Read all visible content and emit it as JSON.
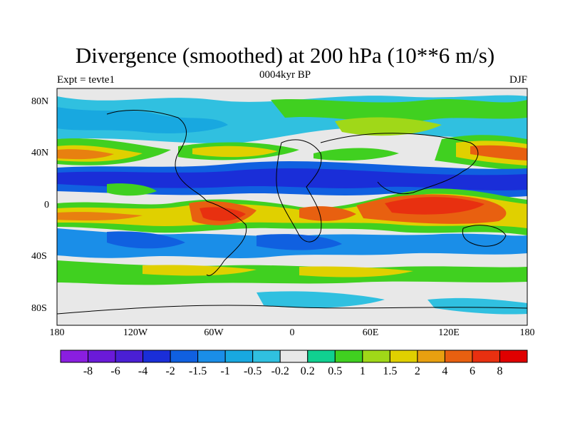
{
  "title": "Divergence (smoothed) at 200 hPa (10**6 m/s)",
  "subtitle_left": "Expt = tevte1",
  "subtitle_center": "0004kyr BP",
  "subtitle_right": "DJF",
  "lat_labels": [
    "80N",
    "40N",
    "0",
    "40S",
    "80S"
  ],
  "lon_labels": [
    "180",
    "120W",
    "60W",
    "0",
    "60E",
    "120E",
    "180"
  ],
  "colorbar": {
    "labels": [
      "-8",
      "-6",
      "-4",
      "-2",
      "-1.5",
      "-1",
      "-0.5",
      "-0.2",
      "0.2",
      "0.5",
      "1",
      "1.5",
      "2",
      "4",
      "6",
      "8"
    ],
    "colors": [
      "#8a1ee0",
      "#6a1ad8",
      "#4a1fd4",
      "#1a2ed8",
      "#1060e0",
      "#1a8ee8",
      "#18a8e0",
      "#30c0e0",
      "#e8e8e8",
      "#10d090",
      "#40d020",
      "#a0d818",
      "#e0d000",
      "#e8a010",
      "#e86010",
      "#e83010",
      "#e00000"
    ]
  },
  "colors": {
    "neutral": "#e8e8e8",
    "blue_dark": "#1a2ed8",
    "blue_mid": "#1060e0",
    "cyan": "#30c0e0",
    "green": "#40d020",
    "yellow": "#e0d000",
    "orange": "#e88010",
    "red": "#e83010"
  }
}
